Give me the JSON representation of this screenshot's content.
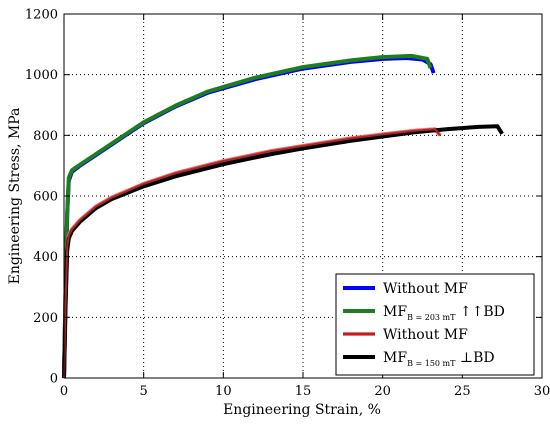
{
  "chart_data": {
    "type": "line",
    "title": "",
    "xlabel": "Engineering Strain, %",
    "ylabel": "Engineering Stress, MPa",
    "xlim": [
      0,
      30
    ],
    "ylim": [
      0,
      1200
    ],
    "xticks": [
      0,
      5,
      10,
      15,
      20,
      25,
      30
    ],
    "yticks": [
      0,
      200,
      400,
      600,
      800,
      1000,
      1200
    ],
    "xtick_labels": [
      "0",
      "5",
      "10",
      "15",
      "20",
      "25",
      "30"
    ],
    "ytick_labels": [
      "0",
      "200",
      "400",
      "600",
      "800",
      "1000",
      "1200"
    ],
    "grid": true,
    "grid_style": "dotted",
    "legend_placement": "bottom-right",
    "series": [
      {
        "name": "Without MF",
        "color": "#0000ff",
        "x": [
          0,
          0.1,
          0.2,
          0.3,
          0.5,
          1,
          2,
          3,
          5,
          7,
          9,
          12,
          15,
          18,
          20,
          21.5,
          22.5,
          23.0,
          23.2
        ],
        "y": [
          0,
          300,
          540,
          650,
          680,
          700,
          735,
          770,
          840,
          895,
          940,
          985,
          1020,
          1042,
          1052,
          1055,
          1050,
          1035,
          1005
        ]
      },
      {
        "name": "MF  ↑↑BD",
        "name_main": "MF",
        "name_sub": "B = 203 mT",
        "name_suffix": " ↑↑BD",
        "color": "#1e7d1e",
        "x": [
          0,
          0.1,
          0.2,
          0.3,
          0.5,
          1,
          2,
          3,
          5,
          7,
          9,
          12,
          15,
          18,
          20,
          21.8,
          22.8,
          23.0
        ],
        "y": [
          0,
          300,
          540,
          660,
          685,
          703,
          738,
          773,
          843,
          898,
          944,
          990,
          1025,
          1047,
          1058,
          1062,
          1052,
          1022
        ]
      },
      {
        "name": "Without MF",
        "color": "#ff6666",
        "x": [
          0,
          0.1,
          0.2,
          0.3,
          0.5,
          1,
          2,
          3,
          5,
          7,
          10,
          13,
          15,
          18,
          20,
          22,
          23.3,
          23.6
        ],
        "y": [
          0,
          250,
          430,
          470,
          490,
          520,
          565,
          595,
          640,
          675,
          715,
          748,
          765,
          790,
          803,
          815,
          820,
          800
        ]
      },
      {
        "name": "MF  ⊥BD",
        "name_main": "MF",
        "name_sub": "B = 150 mT",
        "name_suffix": " ⊥BD",
        "color": "#000000",
        "x": [
          0,
          0.1,
          0.2,
          0.3,
          0.5,
          1,
          2,
          3,
          5,
          7,
          10,
          13,
          15,
          18,
          20,
          22,
          24,
          26,
          27.2,
          27.5
        ],
        "y": [
          0,
          240,
          420,
          460,
          485,
          515,
          560,
          590,
          632,
          665,
          705,
          738,
          757,
          782,
          796,
          810,
          820,
          828,
          830,
          805
        ]
      }
    ],
    "overlays": [
      {
        "of_series": 2,
        "color": "#a52a2a",
        "x": [
          0,
          0.1,
          0.2,
          0.3,
          0.5,
          1,
          2,
          3,
          5,
          7,
          10,
          13,
          15,
          18,
          20,
          22,
          23.3,
          23.6
        ],
        "y": [
          0,
          250,
          430,
          470,
          490,
          520,
          565,
          595,
          640,
          675,
          715,
          748,
          765,
          790,
          803,
          815,
          820,
          800
        ]
      }
    ]
  }
}
